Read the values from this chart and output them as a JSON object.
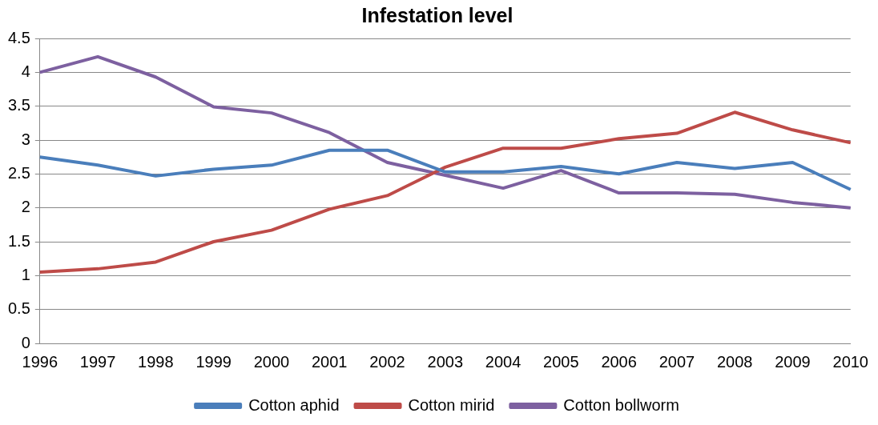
{
  "chart_data": {
    "type": "line",
    "title": "Infestation level",
    "categories": [
      "1996",
      "1997",
      "1998",
      "1999",
      "2000",
      "2001",
      "2002",
      "2003",
      "2004",
      "2005",
      "2006",
      "2007",
      "2008",
      "2009",
      "2010"
    ],
    "series": [
      {
        "name": "Cotton aphid",
        "color": "#4a7ebb",
        "values": [
          2.75,
          2.63,
          2.47,
          2.57,
          2.63,
          2.85,
          2.85,
          2.53,
          2.53,
          2.61,
          2.5,
          2.67,
          2.58,
          2.67,
          2.27
        ]
      },
      {
        "name": "Cotton mirid",
        "color": "#be4b48",
        "values": [
          1.05,
          1.1,
          1.2,
          1.5,
          1.67,
          1.98,
          2.18,
          2.6,
          2.88,
          2.88,
          3.02,
          3.1,
          3.41,
          3.15,
          2.96
        ]
      },
      {
        "name": "Cotton bollworm",
        "color": "#7d60a0",
        "values": [
          4,
          4.23,
          3.93,
          3.49,
          3.4,
          3.11,
          2.67,
          2.48,
          2.29,
          2.55,
          2.22,
          2.22,
          2.2,
          2.08,
          2
        ]
      }
    ],
    "ylim": [
      0,
      4.5
    ],
    "yticks": [
      0,
      0.5,
      1,
      1.5,
      2,
      2.5,
      3,
      3.5,
      4,
      4.5
    ],
    "grid": "y",
    "legend": "bottom",
    "marker": "none",
    "line_style": "solid"
  }
}
